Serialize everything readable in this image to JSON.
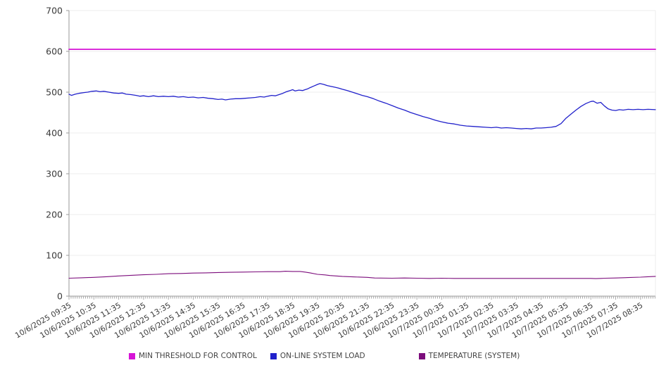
{
  "chart_data": {
    "type": "line",
    "title": "",
    "grid": true,
    "legend_position": "bottom",
    "x_axis": {
      "tick_labels": [
        "10/6/2025 09:35",
        "10/6/2025 10:35",
        "10/6/2025 11:35",
        "10/6/2025 12:35",
        "10/6/2025 13:35",
        "10/6/2025 14:35",
        "10/6/2025 15:35",
        "10/6/2025 16:35",
        "10/6/2025 17:35",
        "10/6/2025 18:35",
        "10/6/2025 19:35",
        "10/6/2025 20:35",
        "10/6/2025 21:35",
        "10/6/2025 22:35",
        "10/6/2025 23:35",
        "10/7/2025 00:35",
        "10/7/2025 01:35",
        "10/7/2025 02:35",
        "10/7/2025 03:35",
        "10/7/2025 04:35",
        "10/7/2025 05:35",
        "10/7/2025 06:35",
        "10/7/2025 07:35",
        "10/7/2025 08:35"
      ],
      "label_interval_hours": 1,
      "minor_tick_minutes": 5,
      "extent_hours": 23.6,
      "label_angle_deg": -30
    },
    "y_axis": {
      "min": 0,
      "max": 700,
      "tick_step": 100,
      "ticks": [
        0,
        100,
        200,
        300,
        400,
        500,
        600,
        700
      ]
    },
    "colors": {
      "grid": "#ececec",
      "axis": "#9a9a9a",
      "tick": "#a8a8a8",
      "label": "#3a3a3a"
    },
    "series": [
      {
        "name": "MIN THRESHOLD FOR CONTROL",
        "color": "#d614d6",
        "points": [
          [
            0,
            605
          ],
          [
            23.6,
            605
          ]
        ]
      },
      {
        "name": "ON-LINE SYSTEM LOAD",
        "color": "#2121cb",
        "points": [
          [
            0,
            495
          ],
          [
            0.1,
            492
          ],
          [
            0.25,
            495
          ],
          [
            0.4,
            497
          ],
          [
            0.6,
            499
          ],
          [
            0.75,
            500
          ],
          [
            0.92,
            502
          ],
          [
            1.1,
            503
          ],
          [
            1.25,
            501
          ],
          [
            1.4,
            502
          ],
          [
            1.6,
            500
          ],
          [
            1.8,
            498
          ],
          [
            2,
            497
          ],
          [
            2.15,
            498
          ],
          [
            2.3,
            495
          ],
          [
            2.5,
            494
          ],
          [
            2.7,
            492
          ],
          [
            2.85,
            490
          ],
          [
            3,
            491
          ],
          [
            3.2,
            489
          ],
          [
            3.4,
            491
          ],
          [
            3.6,
            489
          ],
          [
            3.8,
            490
          ],
          [
            4,
            489
          ],
          [
            4.2,
            490
          ],
          [
            4.4,
            488
          ],
          [
            4.6,
            489
          ],
          [
            4.8,
            487
          ],
          [
            5,
            488
          ],
          [
            5.2,
            486
          ],
          [
            5.4,
            487
          ],
          [
            5.6,
            485
          ],
          [
            5.8,
            484
          ],
          [
            6,
            482
          ],
          [
            6.15,
            483
          ],
          [
            6.3,
            481
          ],
          [
            6.5,
            483
          ],
          [
            6.7,
            484
          ],
          [
            6.9,
            484
          ],
          [
            7.1,
            485
          ],
          [
            7.3,
            486
          ],
          [
            7.5,
            487
          ],
          [
            7.7,
            489
          ],
          [
            7.85,
            488
          ],
          [
            8,
            490
          ],
          [
            8.15,
            492
          ],
          [
            8.3,
            491
          ],
          [
            8.45,
            494
          ],
          [
            8.6,
            497
          ],
          [
            8.75,
            501
          ],
          [
            8.9,
            504
          ],
          [
            9,
            506
          ],
          [
            9.1,
            503
          ],
          [
            9.25,
            505
          ],
          [
            9.4,
            504
          ],
          [
            9.5,
            506
          ],
          [
            9.6,
            508
          ],
          [
            9.7,
            511
          ],
          [
            9.85,
            515
          ],
          [
            10,
            519
          ],
          [
            10.1,
            521
          ],
          [
            10.25,
            519
          ],
          [
            10.4,
            516
          ],
          [
            10.55,
            514
          ],
          [
            10.7,
            512
          ],
          [
            10.85,
            510
          ],
          [
            11,
            507
          ],
          [
            11.2,
            504
          ],
          [
            11.4,
            500
          ],
          [
            11.6,
            496
          ],
          [
            11.8,
            492
          ],
          [
            12,
            489
          ],
          [
            12.25,
            484
          ],
          [
            12.5,
            478
          ],
          [
            12.75,
            473
          ],
          [
            13,
            467
          ],
          [
            13.25,
            461
          ],
          [
            13.5,
            456
          ],
          [
            13.75,
            450
          ],
          [
            14,
            445
          ],
          [
            14.25,
            440
          ],
          [
            14.5,
            436
          ],
          [
            14.75,
            431
          ],
          [
            15,
            427
          ],
          [
            15.25,
            424
          ],
          [
            15.5,
            422
          ],
          [
            15.75,
            419
          ],
          [
            16,
            417
          ],
          [
            16.25,
            416
          ],
          [
            16.5,
            415
          ],
          [
            16.75,
            414
          ],
          [
            17,
            413
          ],
          [
            17.2,
            414
          ],
          [
            17.4,
            412
          ],
          [
            17.6,
            413
          ],
          [
            17.8,
            412
          ],
          [
            18,
            411
          ],
          [
            18.2,
            410
          ],
          [
            18.4,
            411
          ],
          [
            18.6,
            410
          ],
          [
            18.8,
            412
          ],
          [
            19,
            412
          ],
          [
            19.2,
            413
          ],
          [
            19.4,
            414
          ],
          [
            19.6,
            416
          ],
          [
            19.8,
            423
          ],
          [
            20,
            436
          ],
          [
            20.2,
            446
          ],
          [
            20.4,
            456
          ],
          [
            20.6,
            465
          ],
          [
            20.8,
            472
          ],
          [
            21,
            477
          ],
          [
            21.1,
            478
          ],
          [
            21.25,
            473
          ],
          [
            21.4,
            475
          ],
          [
            21.55,
            466
          ],
          [
            21.7,
            459
          ],
          [
            21.85,
            456
          ],
          [
            22,
            455
          ],
          [
            22.15,
            457
          ],
          [
            22.3,
            456
          ],
          [
            22.5,
            458
          ],
          [
            22.7,
            457
          ],
          [
            22.9,
            458
          ],
          [
            23.1,
            457
          ],
          [
            23.3,
            458
          ],
          [
            23.6,
            457
          ]
        ]
      },
      {
        "name": "TEMPERATURE (SYSTEM)",
        "color": "#7c0d7c",
        "points": [
          [
            0,
            44
          ],
          [
            0.5,
            45
          ],
          [
            1,
            46
          ],
          [
            1.5,
            47.5
          ],
          [
            2,
            49.5
          ],
          [
            2.5,
            51
          ],
          [
            3,
            52.5
          ],
          [
            3.5,
            53.5
          ],
          [
            4,
            55
          ],
          [
            4.5,
            55.5
          ],
          [
            5,
            56.5
          ],
          [
            5.5,
            57
          ],
          [
            6,
            58
          ],
          [
            6.5,
            58.5
          ],
          [
            7,
            59
          ],
          [
            7.5,
            59.5
          ],
          [
            8,
            60
          ],
          [
            8.5,
            60
          ],
          [
            8.7,
            61
          ],
          [
            9,
            60.5
          ],
          [
            9.3,
            60.5
          ],
          [
            9.5,
            59
          ],
          [
            9.7,
            57
          ],
          [
            10,
            53.5
          ],
          [
            10.3,
            52
          ],
          [
            10.5,
            50.5
          ],
          [
            11,
            48.5
          ],
          [
            11.5,
            47
          ],
          [
            12,
            46
          ],
          [
            12.3,
            44.5
          ],
          [
            13,
            44
          ],
          [
            13.5,
            44.5
          ],
          [
            14,
            44
          ],
          [
            14.5,
            43.5
          ],
          [
            15,
            44
          ],
          [
            15.5,
            43.5
          ],
          [
            16,
            43.5
          ],
          [
            16.5,
            43.5
          ],
          [
            17,
            43.5
          ],
          [
            17.5,
            43.5
          ],
          [
            18,
            43.5
          ],
          [
            18.5,
            43.5
          ],
          [
            19,
            43.5
          ],
          [
            19.5,
            43.5
          ],
          [
            20,
            43.5
          ],
          [
            20.5,
            43.5
          ],
          [
            21,
            43.5
          ],
          [
            21.2,
            43
          ],
          [
            21.4,
            43.5
          ],
          [
            21.6,
            44
          ],
          [
            22,
            44.5
          ],
          [
            22.5,
            45.5
          ],
          [
            23,
            46.5
          ],
          [
            23.3,
            47.5
          ],
          [
            23.6,
            48.5
          ]
        ]
      }
    ]
  }
}
